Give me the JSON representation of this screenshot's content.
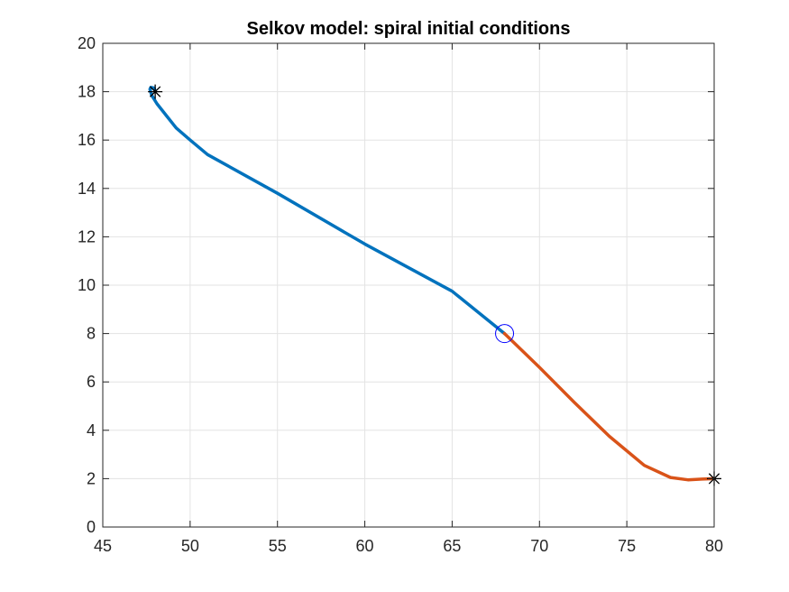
{
  "chart_data": {
    "type": "line",
    "title": "Selkov model: spiral initial conditions",
    "xlabel": "",
    "ylabel": "",
    "xlim": [
      45,
      80
    ],
    "ylim": [
      0,
      20
    ],
    "xticks": [
      45,
      50,
      55,
      60,
      65,
      70,
      75,
      80
    ],
    "yticks": [
      0,
      2,
      4,
      6,
      8,
      10,
      12,
      14,
      16,
      18,
      20
    ],
    "grid": true,
    "legend": "none",
    "series": [
      {
        "color": "#0072BD",
        "x": [
          68.0,
          65.0,
          60.0,
          55.0,
          51.0,
          50.0,
          49.2,
          48.6,
          48.1,
          47.8,
          47.7,
          47.75,
          47.95,
          48.0
        ],
        "y": [
          8.0,
          9.75,
          11.7,
          13.8,
          15.4,
          16.0,
          16.5,
          17.05,
          17.5,
          17.85,
          18.1,
          18.18,
          18.15,
          18.0
        ]
      },
      {
        "color": "#D95319",
        "x": [
          68.0,
          70.0,
          72.0,
          74.0,
          76.0,
          77.5,
          78.5,
          79.3,
          80.0
        ],
        "y": [
          8.0,
          6.6,
          5.15,
          3.75,
          2.55,
          2.05,
          1.95,
          1.98,
          2.0
        ]
      }
    ],
    "markers": [
      {
        "type": "circle",
        "x": 68,
        "y": 8,
        "color": "#0000FF"
      },
      {
        "type": "asterisk",
        "x": 48,
        "y": 18,
        "color": "#000000"
      },
      {
        "type": "asterisk",
        "x": 80,
        "y": 2,
        "color": "#000000"
      }
    ]
  }
}
